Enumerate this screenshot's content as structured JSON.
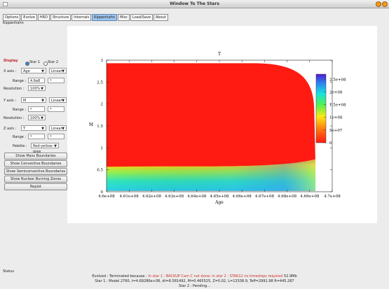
{
  "window": {
    "title": "Window To The Stars"
  },
  "tabs": [
    "Options",
    "Evolve",
    "HRD",
    "Structure",
    "Internals",
    "Kippenhahn",
    "Misc",
    "Load/Save",
    "About"
  ],
  "active_tab": "Kippenhahn",
  "sub_label": "Kippenhahn",
  "display": {
    "title": "Display",
    "star1": "Star 1",
    "star2": "Star 2"
  },
  "xaxis": {
    "label": "X axis :",
    "value": "Age",
    "scale": "Linear",
    "range_label": "Range :",
    "range_min": "4.6e8",
    "range_max": "*",
    "resolution_label": "Resolution :",
    "resolution": "100%"
  },
  "yaxis": {
    "label": "Y axis :",
    "value": "M",
    "scale": "Linear",
    "range_label": "Range :",
    "range_min": "*",
    "range_max": "*",
    "resolution_label": "Resolution :",
    "resolution": "100%"
  },
  "zaxis": {
    "label": "Z axis :",
    "value": "T",
    "scale": "Linear",
    "range_label": "Range :",
    "range_min": "*",
    "range_max": "*"
  },
  "palette": {
    "label": "Palette :",
    "value": "Red-yellow-gree"
  },
  "buttons": {
    "mass": "Show Mass Boundaries",
    "convective": "Show Convective Boundaries",
    "semiconvective": "Show Semiconvective Boundaries",
    "nuclear": "Show Nuclear Burning Zones",
    "replot": "Replot"
  },
  "status": {
    "label": "Status",
    "line1_prefix": "Evolved : Terminated because :",
    "line1_red": "In star 1 : BACKUP Cam C not done; in star 2 : STAR12 no timesteps required",
    "line1_suffix": "52.9Mb",
    "line2": "Star 1 : Model 2760, t=4.69286e+08, dt=8.581492, M=0.465525, Z=0.02, L=13338.9, Teff=2991.98 R=445.287",
    "line3": "Star 2 : Pending..."
  },
  "chart_data": {
    "type": "heatmap",
    "title": "T",
    "xlabel": "Age",
    "ylabel": "M",
    "xlim": [
      460000000.0,
      470000000.0
    ],
    "ylim": [
      0,
      3
    ],
    "x_ticks": [
      "4.6e+08",
      "4.61e+08",
      "4.62e+08",
      "4.63e+08",
      "4.64e+08",
      "4.65e+08",
      "4.66e+08",
      "4.67e+08",
      "4.68e+08",
      "4.69e+08",
      "4.7e+08"
    ],
    "y_ticks": [
      "0",
      "0.5",
      "1",
      "1.5",
      "2",
      "2.5",
      "3"
    ],
    "colorbar": {
      "ticks": [
        "2.5e+08",
        "2e+08",
        "1.5e+08",
        "1e+08",
        "5e+07",
        "0"
      ],
      "range": [
        0,
        270000000.0
      ]
    },
    "grid": true,
    "colors": {
      "hot": "#2b2bd6",
      "cool": "#ff1a12"
    }
  }
}
